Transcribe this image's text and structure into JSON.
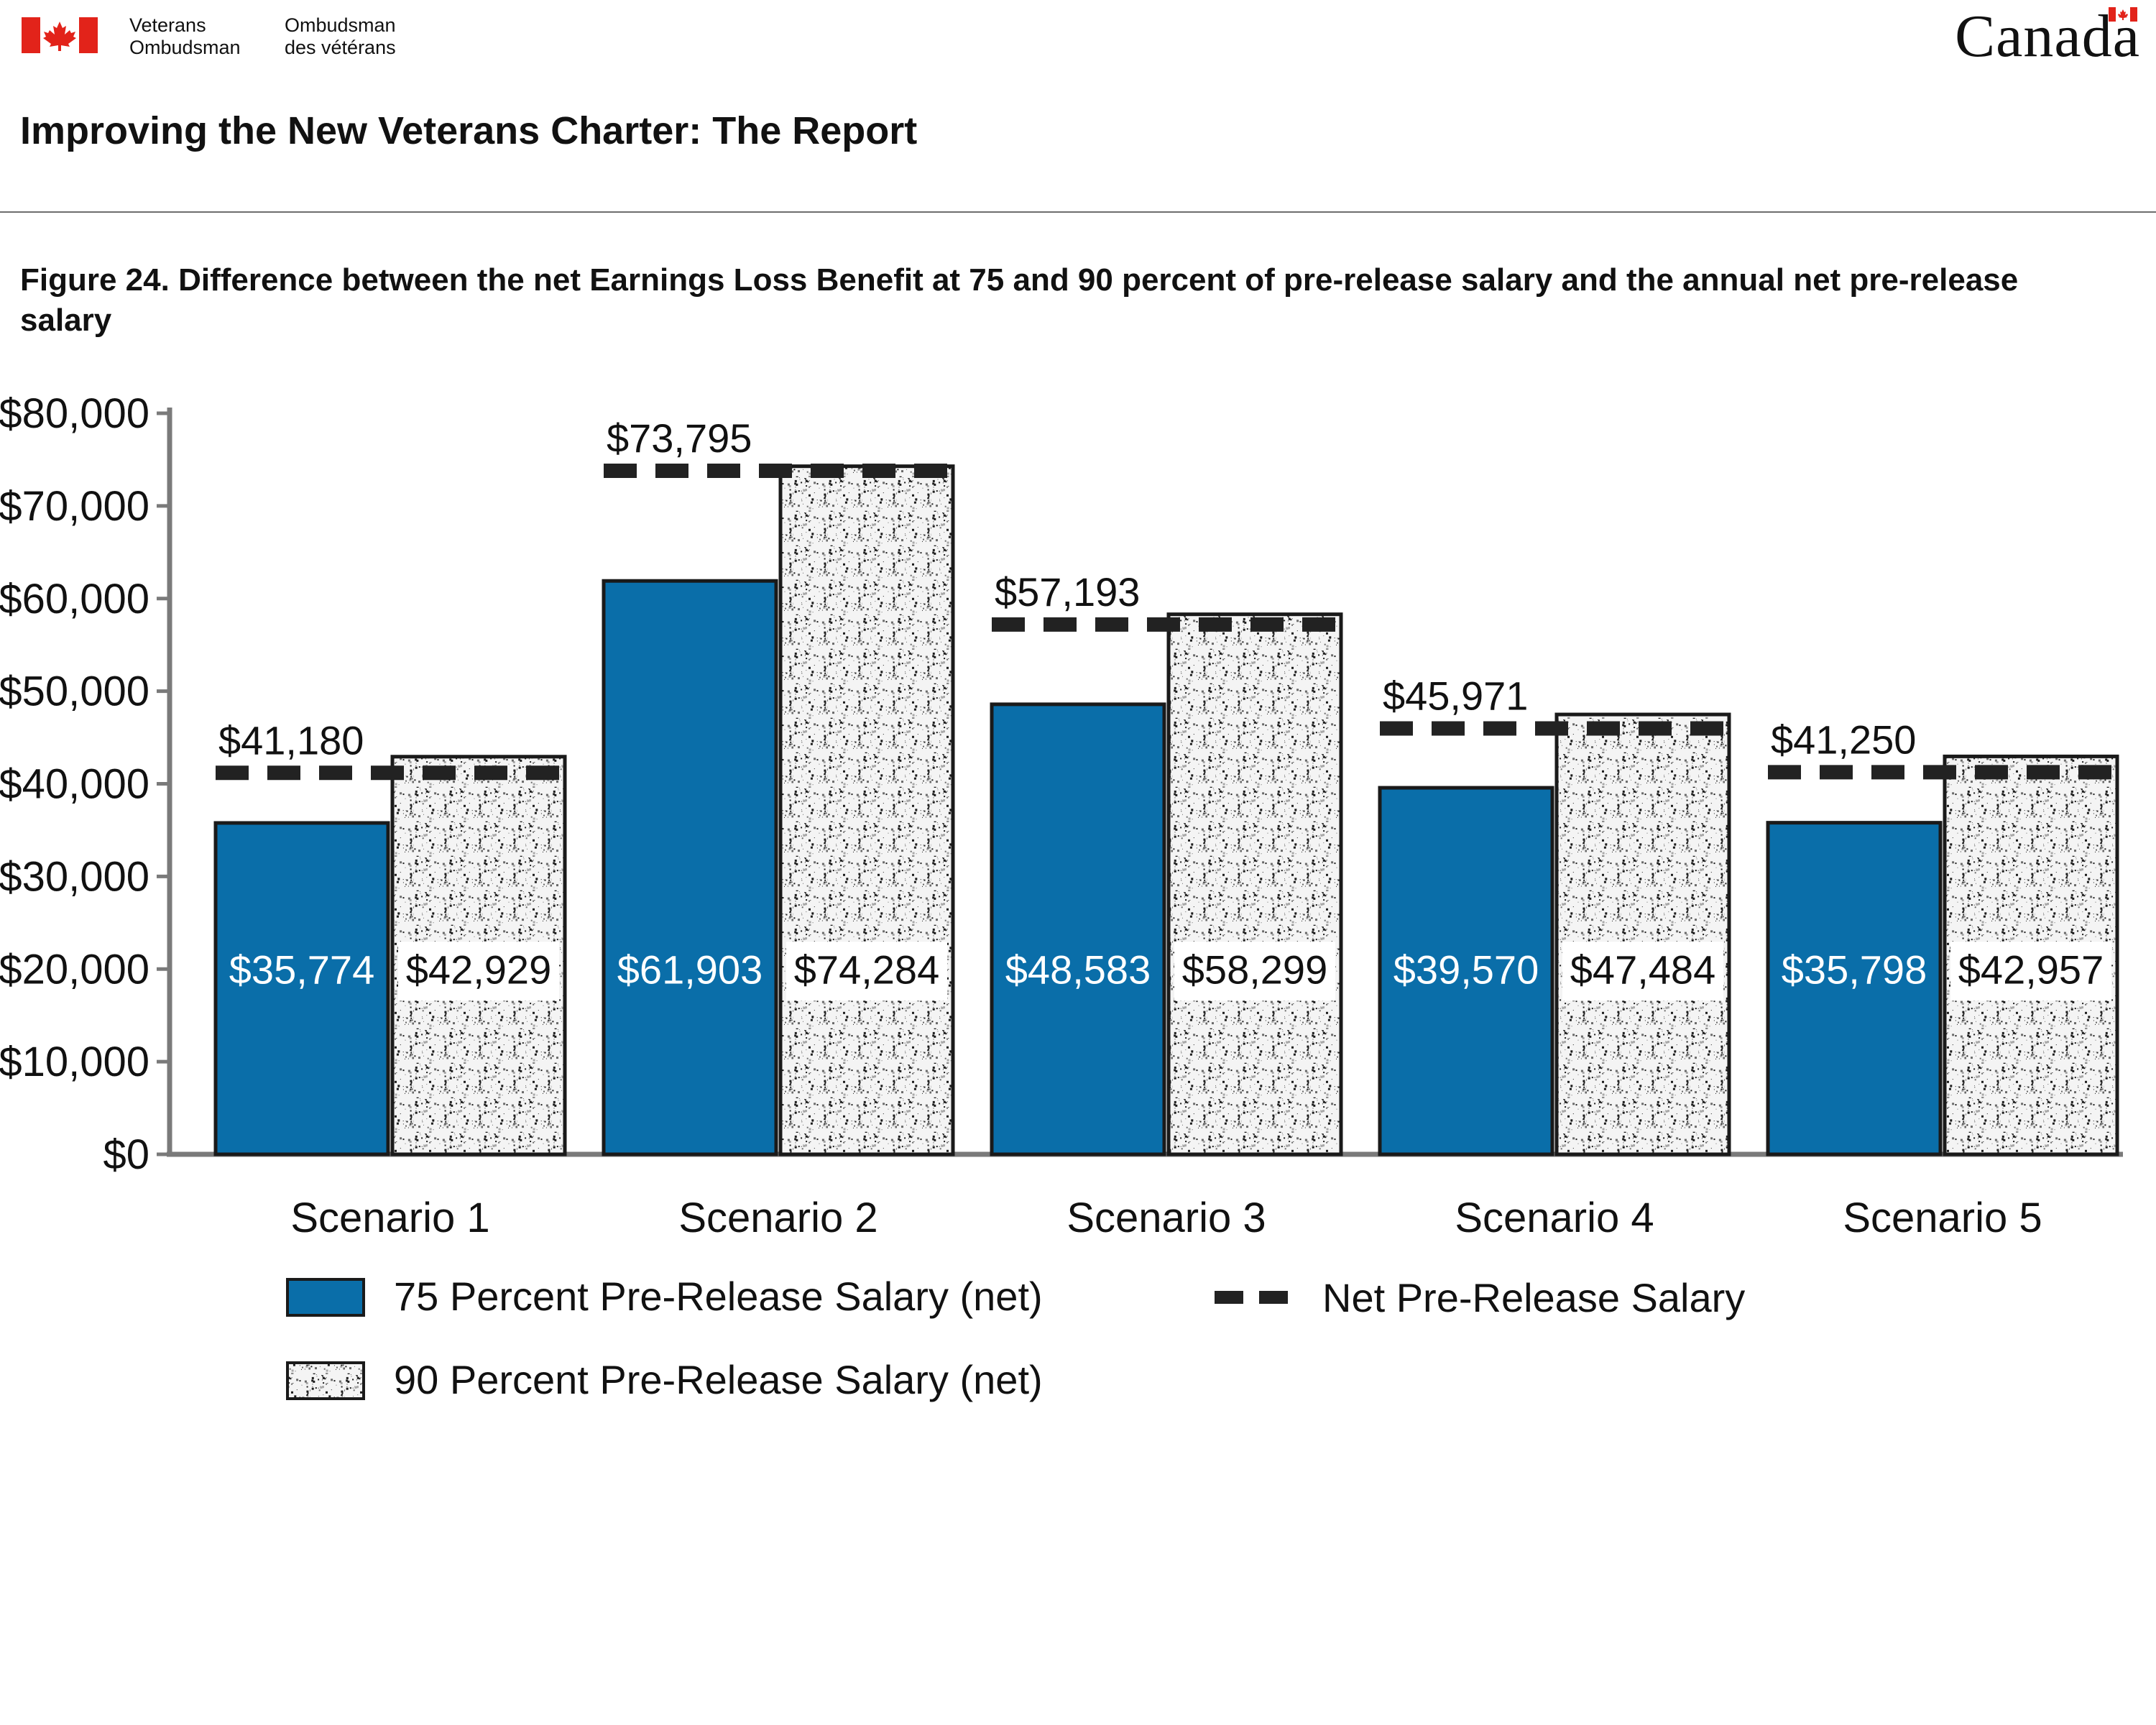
{
  "header": {
    "org_en_line1": "Veterans",
    "org_en_line2": "Ombudsman",
    "org_fr_line1": "Ombudsman",
    "org_fr_line2": "des vétérans",
    "wordmark": "Canada",
    "flag_color": "#e2231a"
  },
  "report_title": "Improving the New Veterans Charter: The Report",
  "figure_caption": "Figure 24. Difference between the net Earnings Loss Benefit at 75 and 90 percent of pre-release salary and the annual net pre-release salary",
  "chart_data": {
    "type": "bar",
    "title": "",
    "xlabel": "",
    "ylabel": "",
    "ylim": [
      0,
      80000
    ],
    "yticks": [
      0,
      10000,
      20000,
      30000,
      40000,
      50000,
      60000,
      70000,
      80000
    ],
    "ytick_labels": [
      "$0",
      "$10,000",
      "$20,000",
      "$30,000",
      "$40,000",
      "$50,000",
      "$60,000",
      "$70,000",
      "$80,000"
    ],
    "categories": [
      "Scenario 1",
      "Scenario 2",
      "Scenario 3",
      "Scenario 4",
      "Scenario 5"
    ],
    "series": [
      {
        "name": "75 Percent Pre-Release Salary (net)",
        "kind": "bar",
        "color": "#0a6ea9",
        "values": [
          35774,
          61903,
          48583,
          39570,
          35798
        ],
        "labels": [
          "$35,774",
          "$61,903",
          "$48,583",
          "$39,570",
          "$35,798"
        ]
      },
      {
        "name": "90 Percent Pre-Release Salary (net)",
        "kind": "bar",
        "color": "#d9d9d9",
        "pattern": "speckle",
        "values": [
          42929,
          74284,
          58299,
          47484,
          42957
        ],
        "labels": [
          "$42,929",
          "$74,284",
          "$58,299",
          "$47,484",
          "$42,957"
        ]
      },
      {
        "name": "Net Pre-Release Salary",
        "kind": "dashed-line",
        "color": "#222222",
        "values": [
          41180,
          73795,
          57193,
          45971,
          41250
        ],
        "labels": [
          "$41,180",
          "$73,795",
          "$57,193",
          "$45,971",
          "$41,250"
        ]
      }
    ],
    "grid": false,
    "legend_position": "bottom"
  }
}
